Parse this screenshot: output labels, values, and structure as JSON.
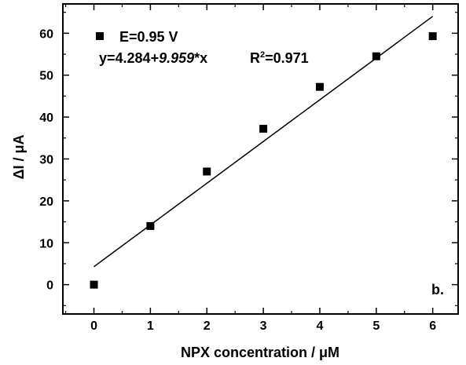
{
  "chart_data": {
    "type": "scatter",
    "xlabel": "NPX concentration / μM",
    "ylabel": "ΔI / μA",
    "xlim": [
      -0.55,
      6.45
    ],
    "ylim": [
      -7,
      67
    ],
    "xticks": [
      0,
      1,
      2,
      3,
      4,
      5,
      6
    ],
    "yticks": [
      0,
      10,
      20,
      30,
      40,
      50,
      60
    ],
    "x_tick_labels": [
      "0",
      "1",
      "2",
      "3",
      "4",
      "5",
      "6"
    ],
    "y_tick_labels": [
      "0",
      "10",
      "20",
      "30",
      "40",
      "50",
      "60"
    ],
    "series": [
      {
        "name": "E=0.95 V",
        "marker": "square",
        "color": "#000000",
        "x": [
          0,
          1,
          2,
          3,
          4,
          5,
          6
        ],
        "y": [
          0.0,
          14.0,
          27.0,
          37.2,
          47.2,
          54.5,
          59.3
        ]
      }
    ],
    "fit": {
      "intercept": 4.284,
      "slope": 9.959,
      "x_range": [
        0,
        6
      ]
    },
    "legend": {
      "label": "E=0.95 V",
      "placement": "top-left"
    },
    "annotations": {
      "equation_prefix": "y=4.284+",
      "equation_slope": "9.959",
      "equation_suffix": "*x",
      "r2_prefix": "R",
      "r2_sup": "2",
      "r2_value": "=0.971",
      "panel_label": "b."
    },
    "grid": false
  }
}
